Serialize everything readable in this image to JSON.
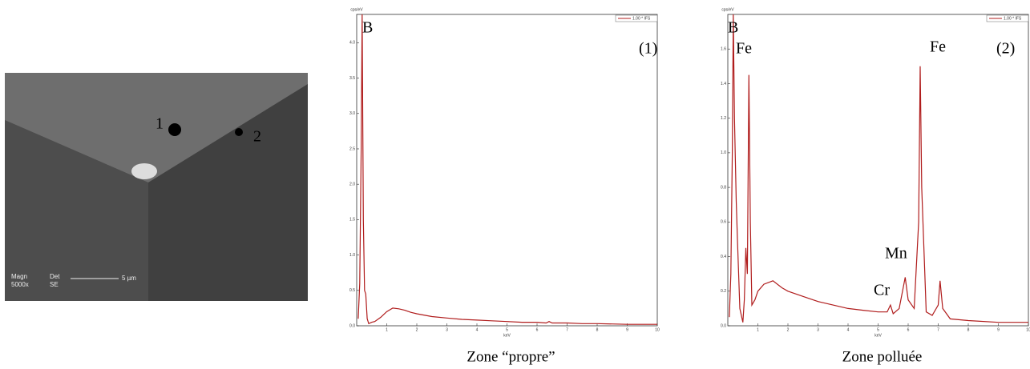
{
  "sem_image": {
    "points": [
      "1",
      "2"
    ],
    "info": [
      "Magn",
      "Det",
      "5000x",
      "SE"
    ],
    "scale_bar": "5 µm"
  },
  "chart_data": [
    {
      "type": "line",
      "caption": "Zone “propre”",
      "y_label": "cps/eV",
      "x_label": "keV",
      "annotations": [
        "B",
        "(1)"
      ],
      "x": [
        0.05,
        0.1,
        0.15,
        0.18,
        0.22,
        0.26,
        0.3,
        0.35,
        0.4,
        0.5,
        0.6,
        0.8,
        1.0,
        1.2,
        1.4,
        1.6,
        1.8,
        2.0,
        2.5,
        3.0,
        3.5,
        4.0,
        4.5,
        5.0,
        5.5,
        6.0,
        6.3,
        6.4,
        6.5,
        7.0,
        7.5,
        8.0,
        9.0,
        10.0
      ],
      "series": [
        {
          "name": "1.00 * IFS",
          "color": "#b01c1c",
          "values": [
            0.1,
            0.6,
            2.5,
            4.4,
            1.5,
            0.5,
            0.45,
            0.1,
            0.03,
            0.05,
            0.06,
            0.12,
            0.2,
            0.25,
            0.24,
            0.22,
            0.19,
            0.17,
            0.13,
            0.11,
            0.09,
            0.08,
            0.07,
            0.06,
            0.05,
            0.05,
            0.04,
            0.06,
            0.04,
            0.04,
            0.03,
            0.03,
            0.02,
            0.02
          ]
        }
      ],
      "xlim": [
        0,
        10
      ],
      "xticks": [
        1,
        2,
        3,
        4,
        5,
        6,
        7,
        8,
        9,
        10
      ],
      "ylim": [
        0,
        4.4
      ],
      "yticks": [
        {
          "value": 0,
          "label": "0.0"
        },
        0.5,
        {
          "value": 1,
          "label": "1.0"
        },
        1.5,
        {
          "value": 2,
          "label": "2.0"
        },
        2.5,
        {
          "value": 3,
          "label": "3.0"
        },
        3.5,
        {
          "value": 4,
          "label": "4.0"
        }
      ]
    },
    {
      "type": "line",
      "caption": "Zone polluée",
      "y_label": "cps/eV",
      "x_label": "keV",
      "annotations": [
        "B",
        "Fe",
        "Fe",
        "Mn",
        "Cr",
        "(2)"
      ],
      "x": [
        0.05,
        0.1,
        0.15,
        0.18,
        0.22,
        0.28,
        0.32,
        0.4,
        0.5,
        0.55,
        0.6,
        0.65,
        0.7,
        0.75,
        0.8,
        0.9,
        1.0,
        1.2,
        1.5,
        1.8,
        2.0,
        2.5,
        3.0,
        3.5,
        4.0,
        4.5,
        5.0,
        5.3,
        5.41,
        5.5,
        5.7,
        5.9,
        6.0,
        6.2,
        6.35,
        6.4,
        6.45,
        6.6,
        6.8,
        7.0,
        7.06,
        7.15,
        7.4,
        8.0,
        9.0,
        10.0
      ],
      "series": [
        {
          "name": "1.00 * IFS",
          "color": "#b01c1c",
          "values": [
            0.05,
            0.3,
            1.0,
            1.8,
            1.2,
            0.72,
            0.5,
            0.1,
            0.02,
            0.15,
            0.45,
            0.3,
            1.45,
            0.6,
            0.12,
            0.15,
            0.2,
            0.24,
            0.26,
            0.22,
            0.2,
            0.17,
            0.14,
            0.12,
            0.1,
            0.09,
            0.08,
            0.08,
            0.12,
            0.07,
            0.1,
            0.28,
            0.15,
            0.1,
            0.6,
            1.5,
            0.8,
            0.08,
            0.06,
            0.12,
            0.26,
            0.1,
            0.04,
            0.03,
            0.02,
            0.02
          ]
        }
      ],
      "xlim": [
        0,
        10
      ],
      "xticks": [
        1,
        2,
        3,
        4,
        5,
        6,
        7,
        8,
        9,
        10
      ],
      "ylim": [
        0,
        1.8
      ],
      "yticks": [
        {
          "value": 0,
          "label": "0.0"
        },
        0.2,
        0.4,
        0.6,
        0.8,
        {
          "value": 1,
          "label": "1.0"
        },
        1.2,
        1.4,
        1.6
      ]
    }
  ]
}
